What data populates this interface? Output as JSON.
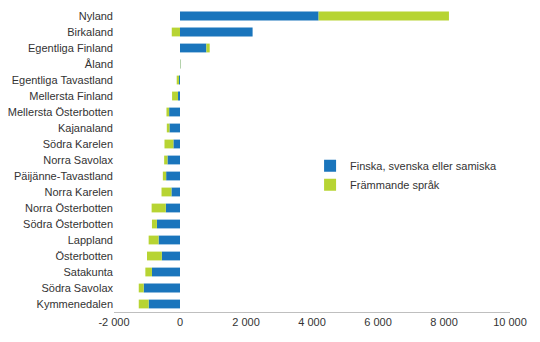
{
  "chart_data": {
    "type": "bar",
    "orientation": "horizontal",
    "stacked": true,
    "grid": false,
    "legend": "right",
    "categories": [
      "Nyland",
      "Birkaland",
      "Egentliga Finland",
      "Åland",
      "Egentliga Tavastland",
      "Mellersta Finland",
      "Mellersta Österbotten",
      "Kajanaland",
      "Södra Karelen",
      "Norra Savolax",
      "Päijänne-Tavastland",
      "Norra Karelen",
      "Norra Österbotten",
      "Södra Österbotten",
      "Lappland",
      "Österbotten",
      "Satakunta",
      "Södra Savolax",
      "Kymmenedalen"
    ],
    "series": [
      {
        "name": "Finska, svenska eller samiska",
        "color": "#1a75bc",
        "values": [
          4200,
          2200,
          800,
          10,
          -30,
          -60,
          -330,
          -320,
          -200,
          -380,
          -420,
          -260,
          -430,
          -700,
          -650,
          -550,
          -850,
          -1100,
          -950
        ]
      },
      {
        "name": "Främmande språk",
        "color": "#b7d433",
        "values": [
          3950,
          -250,
          100,
          10,
          -70,
          -180,
          -80,
          -80,
          -270,
          -100,
          -100,
          -300,
          -430,
          -150,
          -300,
          -450,
          -200,
          -150,
          -300
        ]
      }
    ],
    "xlim": [
      -2000,
      10000
    ],
    "xticks": [
      {
        "value": -2000,
        "label": "-2 000"
      },
      0,
      {
        "value": 2000,
        "label": "2 000"
      },
      {
        "value": 4000,
        "label": "4 000"
      },
      {
        "value": 6000,
        "label": "6 000"
      },
      {
        "value": 8000,
        "label": "8 000"
      },
      {
        "value": 10000,
        "label": "10 000"
      }
    ]
  }
}
